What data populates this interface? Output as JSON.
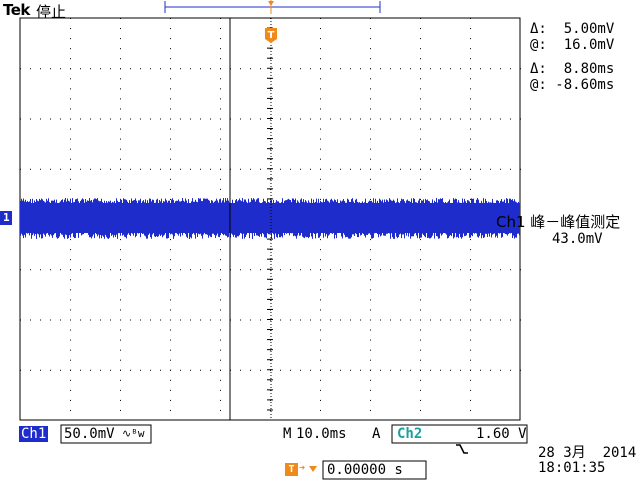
{
  "header": {
    "brand": "Tek",
    "state": "停止"
  },
  "cursors": {
    "v_delta": "Δ:  5.00mV",
    "v_at": "@:  16.0mV",
    "t_delta": "Δ:  8.80ms",
    "t_at": "@: -8.60ms"
  },
  "measurement": {
    "label": "Ch1 峰－峰值测定",
    "value": "43.0mV"
  },
  "channel_marker": "1",
  "trigger_marker": "T",
  "statusbar": {
    "ch1": "Ch1",
    "ch1_scale": "50.0mV",
    "ch1_bw_icon": "∿ᴮw",
    "timebase_prefix": "M",
    "timebase": "10.0ms",
    "trigger_mode": "A",
    "trigger_source": "Ch2",
    "trigger_slope_icon": "falling-edge-icon",
    "trigger_slope": "⌐",
    "trigger_level": "1.60 V"
  },
  "trigger_position": {
    "label": "T",
    "value": "0.00000 s"
  },
  "datetime": {
    "date": "28 3月  2014",
    "time": "18:01:35"
  },
  "colors": {
    "trace": "#1f2ccc",
    "trigger": "#f08a1a",
    "ch2": "#1aa0a0",
    "grid": "#000000"
  }
}
